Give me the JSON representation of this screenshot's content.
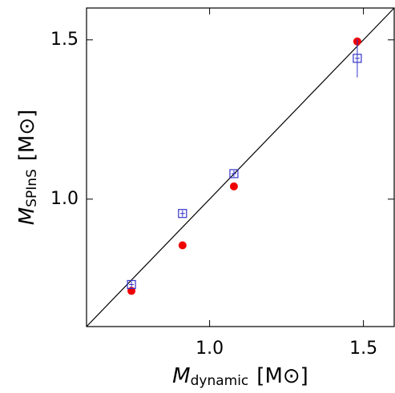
{
  "chart_data": {
    "type": "scatter",
    "x_label": {
      "symbol": "M",
      "subscript": "dynamic",
      "unit": "[M⊙]"
    },
    "y_label": {
      "symbol": "M",
      "subscript": "SPInS",
      "unit": "[M⊙]"
    },
    "xlim": [
      0.6,
      1.6
    ],
    "ylim": [
      0.6,
      1.6
    ],
    "xticks": [
      {
        "value": 1,
        "label": "1.0"
      },
      1.5
    ],
    "yticks": [
      {
        "value": 1,
        "label": "1.0"
      },
      1.5
    ],
    "reference_line": [
      [
        0.6,
        0.6
      ],
      [
        1.6,
        1.6
      ]
    ],
    "series": [
      {
        "marker": "circle",
        "color": "#ee0000",
        "x": [
          0.746,
          0.912,
          1.079,
          1.48
        ],
        "values": [
          0.712,
          0.855,
          1.04,
          1.495
        ]
      },
      {
        "marker": "square",
        "color": "#3333cc",
        "x": [
          0.746,
          0.912,
          1.079,
          1.48
        ],
        "values": [
          0.732,
          0.955,
          1.08,
          1.442
        ],
        "errors": [
          0.01,
          0.01,
          0.01,
          0.06
        ]
      }
    ]
  }
}
